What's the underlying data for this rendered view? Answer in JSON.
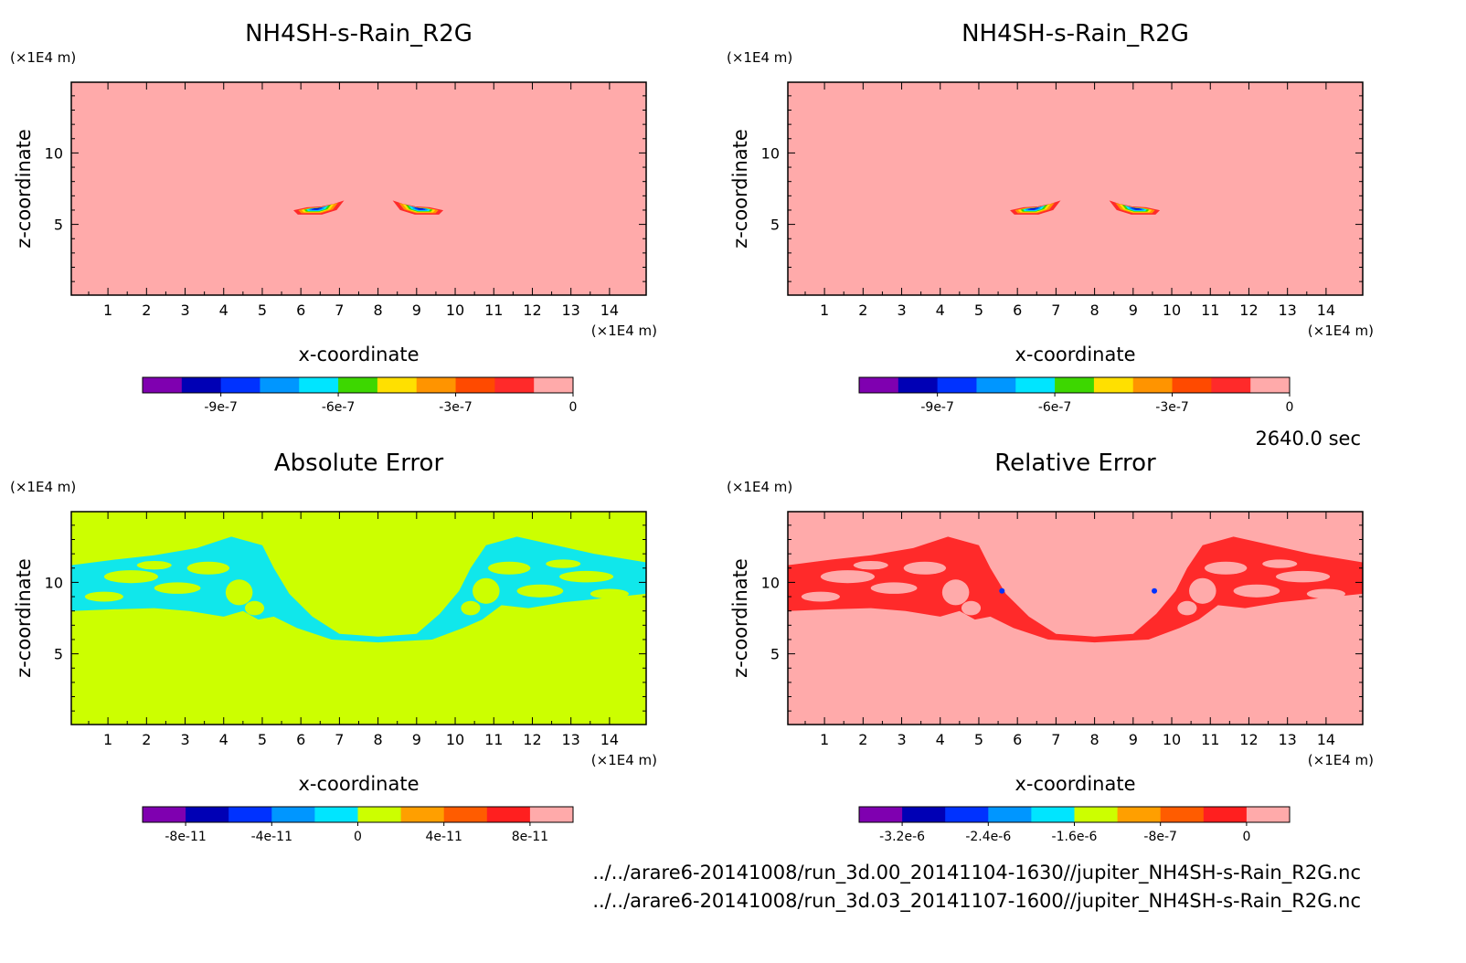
{
  "footer": {
    "time_label": "2640.0 sec",
    "file_1": "../../arare6-20141008/run_3d.00_20141104-1630//jupiter_NH4SH-s-Rain_R2G.nc",
    "file_2": "../../arare6-20141008/run_3d.03_20141107-1600//jupiter_NH4SH-s-Rain_R2G.nc"
  },
  "chart_data": [
    {
      "type": "heatmap",
      "title": "NH4SH-s-Rain_R2G",
      "xlabel": "x-coordinate",
      "ylabel": "z-coordinate",
      "x_unit": "(×1E4 m)",
      "y_unit": "(×1E4 m)",
      "xlim": [
        0.05,
        14.95
      ],
      "ylim": [
        0.05,
        14.95
      ],
      "xticks": [
        "1",
        "2",
        "3",
        "4",
        "5",
        "6",
        "7",
        "8",
        "9",
        "10",
        "11",
        "12",
        "13",
        "14"
      ],
      "yticks": [
        "5",
        "10"
      ],
      "background_color": "#ffaaaa",
      "features": [
        {
          "center_x": 6.4,
          "center_z": 6.1,
          "shape": "left-blob"
        },
        {
          "center_x": 9.1,
          "center_z": 6.1,
          "shape": "right-blob"
        }
      ],
      "colorbar": {
        "colors": [
          "#7f00b0",
          "#0000b5",
          "#0032ff",
          "#0096ff",
          "#00e5ff",
          "#3dd700",
          "#ffe000",
          "#ff9400",
          "#ff4a00",
          "#ff2a2a",
          "#ffaaaa"
        ],
        "tick_labels": [
          "-9e-7",
          "-6e-7",
          "-3e-7",
          "0"
        ],
        "tick_boundaries": [
          2,
          5,
          8,
          11
        ]
      }
    },
    {
      "type": "heatmap",
      "title": "NH4SH-s-Rain_R2G",
      "xlabel": "x-coordinate",
      "ylabel": "z-coordinate",
      "x_unit": "(×1E4 m)",
      "y_unit": "(×1E4 m)",
      "xlim": [
        0.05,
        14.95
      ],
      "ylim": [
        0.05,
        14.95
      ],
      "xticks": [
        "1",
        "2",
        "3",
        "4",
        "5",
        "6",
        "7",
        "8",
        "9",
        "10",
        "11",
        "12",
        "13",
        "14"
      ],
      "yticks": [
        "5",
        "10"
      ],
      "background_color": "#ffaaaa",
      "features": [
        {
          "center_x": 6.4,
          "center_z": 6.1,
          "shape": "left-blob"
        },
        {
          "center_x": 9.1,
          "center_z": 6.1,
          "shape": "right-blob"
        }
      ],
      "colorbar": {
        "colors": [
          "#7f00b0",
          "#0000b5",
          "#0032ff",
          "#0096ff",
          "#00e5ff",
          "#3dd700",
          "#ffe000",
          "#ff9400",
          "#ff4a00",
          "#ff2a2a",
          "#ffaaaa"
        ],
        "tick_labels": [
          "-9e-7",
          "-6e-7",
          "-3e-7",
          "0"
        ],
        "tick_boundaries": [
          2,
          5,
          8,
          11
        ]
      }
    },
    {
      "type": "heatmap",
      "title": "Absolute Error",
      "xlabel": "x-coordinate",
      "ylabel": "z-coordinate",
      "x_unit": "(×1E4 m)",
      "y_unit": "(×1E4 m)",
      "xlim": [
        0.05,
        14.95
      ],
      "ylim": [
        0.05,
        14.95
      ],
      "xticks": [
        "1",
        "2",
        "3",
        "4",
        "5",
        "6",
        "7",
        "8",
        "9",
        "10",
        "11",
        "12",
        "13",
        "14"
      ],
      "yticks": [
        "5",
        "10"
      ],
      "background_color": "#ccff00",
      "features": [
        {
          "center_x": 7.5,
          "center_z": 9.5,
          "shape": "error-band",
          "color": "#00e5ff"
        }
      ],
      "colorbar": {
        "colors": [
          "#7f00b0",
          "#0000b5",
          "#0032ff",
          "#0096ff",
          "#00e5ff",
          "#ccff00",
          "#ff9f00",
          "#ff5c00",
          "#ff1f1f",
          "#ffaaaa"
        ],
        "tick_labels": [
          "-8e-11",
          "-4e-11",
          "0",
          "4e-11",
          "8e-11"
        ],
        "tick_boundaries": [
          1,
          3,
          5,
          7,
          9
        ]
      }
    },
    {
      "type": "heatmap",
      "title": "Relative Error",
      "xlabel": "x-coordinate",
      "ylabel": "z-coordinate",
      "x_unit": "(×1E4 m)",
      "y_unit": "(×1E4 m)",
      "xlim": [
        0.05,
        14.95
      ],
      "ylim": [
        0.05,
        14.95
      ],
      "xticks": [
        "1",
        "2",
        "3",
        "4",
        "5",
        "6",
        "7",
        "8",
        "9",
        "10",
        "11",
        "12",
        "13",
        "14"
      ],
      "yticks": [
        "5",
        "10"
      ],
      "background_color": "#ffaaaa",
      "features": [
        {
          "center_x": 7.5,
          "center_z": 9.5,
          "shape": "error-band",
          "color": "#ff1f1f"
        }
      ],
      "colorbar": {
        "colors": [
          "#7f00b0",
          "#0000b5",
          "#0032ff",
          "#0096ff",
          "#00e5ff",
          "#ccff00",
          "#ff9f00",
          "#ff5c00",
          "#ff1f1f",
          "#ffaaaa"
        ],
        "tick_labels": [
          "-3.2e-6",
          "-2.4e-6",
          "-1.6e-6",
          "-8e-7",
          "0"
        ],
        "tick_boundaries": [
          1,
          3,
          5,
          7,
          9
        ]
      }
    }
  ]
}
